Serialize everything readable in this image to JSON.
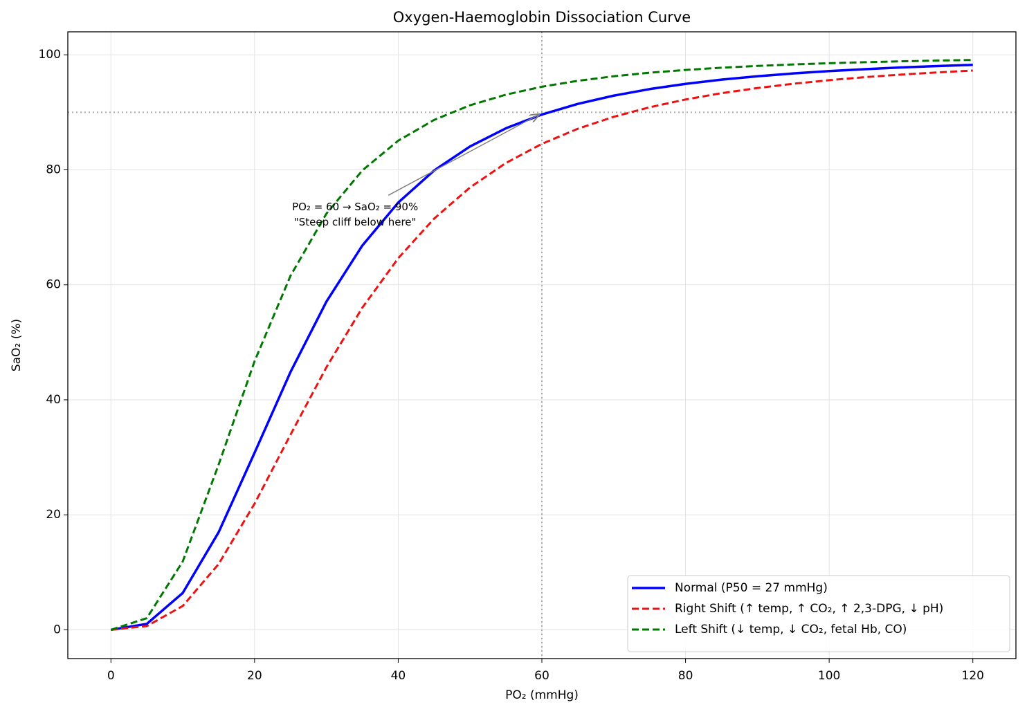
{
  "chart_data": {
    "type": "line",
    "title": "Oxygen-Haemoglobin Dissociation Curve",
    "xlabel": "PO₂ (mmHg)",
    "ylabel": "SaO₂ (%)",
    "x": [
      0,
      5,
      10,
      15,
      20,
      25,
      30,
      35,
      40,
      45,
      50,
      55,
      60,
      65,
      70,
      75,
      80,
      85,
      90,
      95,
      100,
      105,
      110,
      115,
      120
    ],
    "series": [
      {
        "name": "Normal (P50 = 27 mmHg)",
        "color": "#0000ff",
        "style": "solid",
        "values": [
          0,
          1.04,
          6.41,
          16.98,
          30.79,
          44.83,
          57.07,
          66.83,
          74.3,
          79.89,
          84.07,
          87.23,
          89.62,
          91.47,
          92.9,
          94.04,
          94.95,
          95.68,
          96.27,
          96.76,
          97.17,
          97.51,
          97.8,
          98.04,
          98.25
        ]
      },
      {
        "name": "Right Shift (↑ temp, ↑ CO₂, ↑ 2,3-DPG, ↓ pH)",
        "color": "#ee1111",
        "style": "dashed",
        "values": [
          0,
          0.66,
          4.15,
          11.45,
          21.94,
          33.93,
          45.66,
          56.02,
          64.62,
          71.52,
          76.94,
          81.19,
          84.52,
          87.14,
          89.22,
          90.88,
          92.23,
          93.33,
          94.22,
          94.97,
          95.59,
          96.12,
          96.56,
          96.94,
          97.26
        ]
      },
      {
        "name": "Left Shift (↓ temp, ↓ CO₂, fetal Hb, CO)",
        "color": "#007700",
        "style": "dashed",
        "values": [
          0,
          2.03,
          11.89,
          28.74,
          46.71,
          61.56,
          72.37,
          79.89,
          85.07,
          88.68,
          91.23,
          93.08,
          94.45,
          95.48,
          96.27,
          96.89,
          97.37,
          97.76,
          98.07,
          98.33,
          98.54,
          98.72,
          98.87,
          99.0,
          99.11
        ]
      }
    ],
    "xlim": [
      -6,
      126
    ],
    "ylim": [
      -5,
      104
    ],
    "xticks": [
      0,
      20,
      40,
      60,
      80,
      100,
      120
    ],
    "yticks": [
      0,
      20,
      40,
      60,
      80,
      100
    ],
    "grid": true,
    "legend": "lower right",
    "reference_lines": {
      "x": 60,
      "y": 90
    },
    "annotation": {
      "lines": [
        "PO₂ = 60 → SaO₂ = 90%",
        "\"Steep cliff below here\""
      ],
      "xy": [
        60,
        90
      ],
      "xytext": [
        34,
        72.2
      ]
    }
  }
}
